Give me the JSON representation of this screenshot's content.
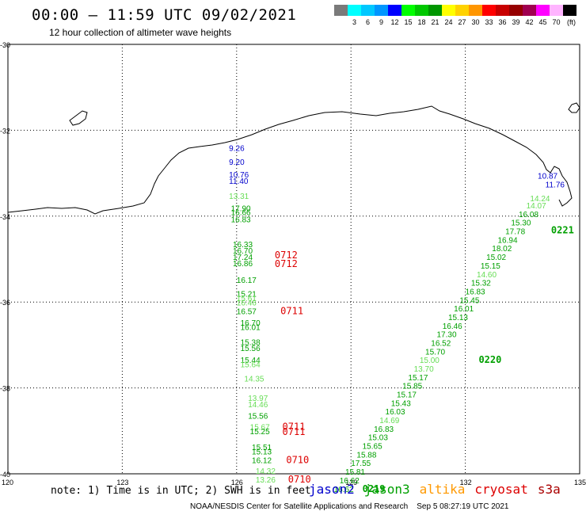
{
  "header": {
    "title": "00:00 — 11:59 UTC 09/02/2021",
    "subtitle": "12 hour collection of altimeter wave heights"
  },
  "legend": {
    "unit": "(ft)",
    "items": [
      {
        "label": "",
        "color": "#7a7a7a"
      },
      {
        "label": "3",
        "color": "#00ffff"
      },
      {
        "label": "6",
        "color": "#00c8ff"
      },
      {
        "label": "9",
        "color": "#0096ff"
      },
      {
        "label": "12",
        "color": "#0000ff"
      },
      {
        "label": "15",
        "color": "#00ff00"
      },
      {
        "label": "18",
        "color": "#00c800"
      },
      {
        "label": "21",
        "color": "#009600"
      },
      {
        "label": "24",
        "color": "#ffff00"
      },
      {
        "label": "27",
        "color": "#ffd200"
      },
      {
        "label": "30",
        "color": "#ff9600"
      },
      {
        "label": "33",
        "color": "#ff0000"
      },
      {
        "label": "36",
        "color": "#c80000"
      },
      {
        "label": "39",
        "color": "#960000"
      },
      {
        "label": "42",
        "color": "#a00050"
      },
      {
        "label": "45",
        "color": "#ff00ff"
      },
      {
        "label": "70",
        "color": "#ffb4ff"
      },
      {
        "label": "",
        "color": "#000000"
      }
    ]
  },
  "map": {
    "lon_ticks": [
      "120",
      "123",
      "126",
      "129",
      "132",
      "135"
    ],
    "lat_ticks": [
      "-30",
      "-32",
      "-34",
      "-36",
      "-38",
      "-40"
    ]
  },
  "colors": {
    "jason2": "#0000cc",
    "jason3": "#00a000",
    "jason3_light": "#66dd55",
    "altika": "#ff9900",
    "cryosat": "#dd0000",
    "s3a": "#aa0000"
  },
  "observations": [
    {
      "t": "9.26",
      "lon": 125.8,
      "lat": -32.48,
      "c": "jason2"
    },
    {
      "t": "9.20",
      "lon": 125.8,
      "lat": -32.8,
      "c": "jason2"
    },
    {
      "t": "10.76",
      "lon": 125.8,
      "lat": -33.1,
      "c": "jason2"
    },
    {
      "t": "11.40",
      "lon": 125.8,
      "lat": -33.25,
      "c": "jason2"
    },
    {
      "t": "13.31",
      "lon": 125.8,
      "lat": -33.6,
      "c": "jason3_light"
    },
    {
      "t": "17.90",
      "lon": 125.85,
      "lat": -33.88,
      "c": "jason3"
    },
    {
      "t": "16.66",
      "lon": 125.85,
      "lat": -33.98,
      "c": "jason3"
    },
    {
      "t": "16.83",
      "lon": 125.85,
      "lat": -34.14,
      "c": "jason3"
    },
    {
      "t": "16.33",
      "lon": 125.9,
      "lat": -34.72,
      "c": "jason3"
    },
    {
      "t": "16.70",
      "lon": 125.9,
      "lat": -34.87,
      "c": "jason3"
    },
    {
      "t": "17.24",
      "lon": 125.9,
      "lat": -35.02,
      "c": "jason3"
    },
    {
      "t": "16.86",
      "lon": 125.9,
      "lat": -35.17,
      "c": "jason3"
    },
    {
      "t": "16.17",
      "lon": 126.0,
      "lat": -35.55,
      "c": "jason3"
    },
    {
      "t": "15.21",
      "lon": 126.0,
      "lat": -35.88,
      "c": "jason3"
    },
    {
      "t": "15.61",
      "lon": 126.0,
      "lat": -35.98,
      "c": "jason3_light"
    },
    {
      "t": "16.46",
      "lon": 126.0,
      "lat": -36.08,
      "c": "jason3_light"
    },
    {
      "t": "16.57",
      "lon": 126.0,
      "lat": -36.28,
      "c": "jason3"
    },
    {
      "t": "16.70",
      "lon": 126.1,
      "lat": -36.55,
      "c": "jason3"
    },
    {
      "t": "16.01",
      "lon": 126.1,
      "lat": -36.65,
      "c": "jason3"
    },
    {
      "t": "15.38",
      "lon": 126.1,
      "lat": -37.0,
      "c": "jason3"
    },
    {
      "t": "15.56",
      "lon": 126.1,
      "lat": -37.14,
      "c": "jason3"
    },
    {
      "t": "15.44",
      "lon": 126.1,
      "lat": -37.42,
      "c": "jason3"
    },
    {
      "t": "15.64",
      "lon": 126.1,
      "lat": -37.52,
      "c": "jason3_light"
    },
    {
      "t": "14.35",
      "lon": 126.2,
      "lat": -37.85,
      "c": "jason3_light"
    },
    {
      "t": "13.97",
      "lon": 126.3,
      "lat": -38.3,
      "c": "jason3_light"
    },
    {
      "t": "14.46",
      "lon": 126.3,
      "lat": -38.45,
      "c": "jason3_light"
    },
    {
      "t": "15.56",
      "lon": 126.3,
      "lat": -38.72,
      "c": "jason3"
    },
    {
      "t": "15.67",
      "lon": 126.35,
      "lat": -38.98,
      "c": "jason3_light"
    },
    {
      "t": "15.25",
      "lon": 126.35,
      "lat": -39.08,
      "c": "jason3"
    },
    {
      "t": "15.51",
      "lon": 126.4,
      "lat": -39.45,
      "c": "jason3"
    },
    {
      "t": "15.13",
      "lon": 126.4,
      "lat": -39.55,
      "c": "jason3"
    },
    {
      "t": "16.12",
      "lon": 126.4,
      "lat": -39.75,
      "c": "jason3"
    },
    {
      "t": "14.32",
      "lon": 126.5,
      "lat": -40.0,
      "c": "jason3_light"
    },
    {
      "t": "13.26",
      "lon": 126.5,
      "lat": -40.2,
      "c": "jason3_light"
    },
    {
      "t": "10.87",
      "lon": 133.9,
      "lat": -33.13,
      "c": "jason2"
    },
    {
      "t": "11.76",
      "lon": 134.1,
      "lat": -33.33,
      "c": "jason2"
    },
    {
      "t": "14.24",
      "lon": 133.7,
      "lat": -33.65,
      "c": "jason3_light"
    },
    {
      "t": "14.07",
      "lon": 133.6,
      "lat": -33.82,
      "c": "jason3_light"
    },
    {
      "t": "16.08",
      "lon": 133.4,
      "lat": -34.02,
      "c": "jason3"
    },
    {
      "t": "15.30",
      "lon": 133.2,
      "lat": -34.22,
      "c": "jason3"
    },
    {
      "t": "17.78",
      "lon": 133.05,
      "lat": -34.42,
      "c": "jason3"
    },
    {
      "t": "16.94",
      "lon": 132.85,
      "lat": -34.62,
      "c": "jason3"
    },
    {
      "t": "18.02",
      "lon": 132.7,
      "lat": -34.82,
      "c": "jason3"
    },
    {
      "t": "15.02",
      "lon": 132.55,
      "lat": -35.02,
      "c": "jason3"
    },
    {
      "t": "15.15",
      "lon": 132.4,
      "lat": -35.22,
      "c": "jason3"
    },
    {
      "t": "14.60",
      "lon": 132.3,
      "lat": -35.42,
      "c": "jason3_light"
    },
    {
      "t": "15.32",
      "lon": 132.15,
      "lat": -35.62,
      "c": "jason3"
    },
    {
      "t": "16.83",
      "lon": 132.0,
      "lat": -35.82,
      "c": "jason3"
    },
    {
      "t": "15.45",
      "lon": 131.85,
      "lat": -36.02,
      "c": "jason3"
    },
    {
      "t": "16.01",
      "lon": 131.7,
      "lat": -36.22,
      "c": "jason3"
    },
    {
      "t": "15.13",
      "lon": 131.55,
      "lat": -36.42,
      "c": "jason3"
    },
    {
      "t": "16.46",
      "lon": 131.4,
      "lat": -36.62,
      "c": "jason3"
    },
    {
      "t": "17.30",
      "lon": 131.25,
      "lat": -36.82,
      "c": "jason3"
    },
    {
      "t": "16.52",
      "lon": 131.1,
      "lat": -37.02,
      "c": "jason3"
    },
    {
      "t": "15.70",
      "lon": 130.95,
      "lat": -37.22,
      "c": "jason3"
    },
    {
      "t": "15.00",
      "lon": 130.8,
      "lat": -37.42,
      "c": "jason3_light"
    },
    {
      "t": "13.70",
      "lon": 130.65,
      "lat": -37.62,
      "c": "jason3_light"
    },
    {
      "t": "15.17",
      "lon": 130.5,
      "lat": -37.82,
      "c": "jason3"
    },
    {
      "t": "15.85",
      "lon": 130.35,
      "lat": -38.02,
      "c": "jason3"
    },
    {
      "t": "15.17",
      "lon": 130.2,
      "lat": -38.22,
      "c": "jason3"
    },
    {
      "t": "15.43",
      "lon": 130.05,
      "lat": -38.42,
      "c": "jason3"
    },
    {
      "t": "16.03",
      "lon": 129.9,
      "lat": -38.62,
      "c": "jason3"
    },
    {
      "t": "14.69",
      "lon": 129.75,
      "lat": -38.82,
      "c": "jason3_light"
    },
    {
      "t": "16.83",
      "lon": 129.6,
      "lat": -39.02,
      "c": "jason3"
    },
    {
      "t": "15.03",
      "lon": 129.45,
      "lat": -39.22,
      "c": "jason3"
    },
    {
      "t": "15.65",
      "lon": 129.3,
      "lat": -39.42,
      "c": "jason3"
    },
    {
      "t": "15.88",
      "lon": 129.15,
      "lat": -39.62,
      "c": "jason3"
    },
    {
      "t": "17.55",
      "lon": 129.0,
      "lat": -39.82,
      "c": "jason3"
    },
    {
      "t": "15.81",
      "lon": 128.85,
      "lat": -40.02,
      "c": "jason3"
    },
    {
      "t": "16.62",
      "lon": 128.7,
      "lat": -40.22,
      "c": "jason3"
    },
    {
      "t": "16.62",
      "lon": 128.55,
      "lat": -40.42,
      "c": "jason3"
    }
  ],
  "time_marks": [
    {
      "t": "0712",
      "lon": 127.0,
      "lat": -34.98,
      "c": "cryosat"
    },
    {
      "t": "0712",
      "lon": 127.0,
      "lat": -35.18,
      "c": "cryosat"
    },
    {
      "t": "0711",
      "lon": 127.15,
      "lat": -36.28,
      "c": "cryosat"
    },
    {
      "t": "0711",
      "lon": 127.2,
      "lat": -38.98,
      "c": "cryosat"
    },
    {
      "t": "0711",
      "lon": 127.2,
      "lat": -39.1,
      "c": "cryosat"
    },
    {
      "t": "0710",
      "lon": 127.3,
      "lat": -39.75,
      "c": "cryosat"
    },
    {
      "t": "0710",
      "lon": 127.35,
      "lat": -40.2,
      "c": "cryosat"
    },
    {
      "t": "0221",
      "lon": 134.25,
      "lat": -34.4,
      "c": "jason3"
    },
    {
      "t": "0220",
      "lon": 132.35,
      "lat": -37.42,
      "c": "jason3"
    },
    {
      "t": "0219",
      "lon": 129.3,
      "lat": -40.42,
      "c": "jason3"
    }
  ],
  "note": "note: 1) Time is in UTC; 2) SWH is in feet",
  "satellites": [
    {
      "name": "jason2",
      "c": "jason2"
    },
    {
      "name": "jason3",
      "c": "jason3"
    },
    {
      "name": "altika",
      "c": "altika"
    },
    {
      "name": "cryosat",
      "c": "cryosat"
    },
    {
      "name": "s3a",
      "c": "s3a"
    }
  ],
  "footer": {
    "credit": "NOAA/NESDIS Center for Satellite Applications and Research",
    "generated": "Sep  5 08:27:19 UTC 2021"
  }
}
